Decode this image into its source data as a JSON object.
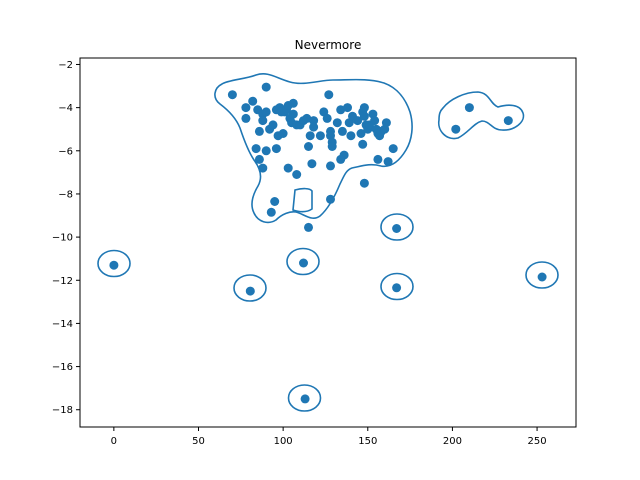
{
  "chart_data": {
    "type": "scatter",
    "title": "Nevermore",
    "xlabel": "",
    "ylabel": "",
    "xlim": [
      -20,
      273
    ],
    "ylim": [
      -18.8,
      -1.7
    ],
    "xticks": [
      0,
      50,
      100,
      150,
      200,
      250
    ],
    "yticks": [
      -18,
      -16,
      -14,
      -12,
      -10,
      -8,
      -6,
      -4,
      -2
    ],
    "xtick_labels": [
      "0",
      "50",
      "100",
      "150",
      "200",
      "250"
    ],
    "ytick_labels": [
      "−18",
      "−16",
      "−14",
      "−12",
      "−10",
      "−8",
      "−6",
      "−4",
      "−2"
    ],
    "grid": false,
    "point_color": "#1f77b4",
    "contour_color": "#1f77b4",
    "points": [
      [
        0,
        -11.3
      ],
      [
        80.6,
        -12.5
      ],
      [
        112,
        -11.2
      ],
      [
        113,
        -17.5
      ],
      [
        167,
        -9.6
      ],
      [
        167,
        -12.35
      ],
      [
        253,
        -11.85
      ],
      [
        202,
        -5.0
      ],
      [
        210,
        -4.0
      ],
      [
        233,
        -4.6
      ],
      [
        70,
        -3.4
      ],
      [
        78,
        -4.0
      ],
      [
        78,
        -4.5
      ],
      [
        82,
        -3.7
      ],
      [
        85,
        -4.1
      ],
      [
        86,
        -5.1
      ],
      [
        88,
        -4.3
      ],
      [
        88,
        -4.6
      ],
      [
        90,
        -3.05
      ],
      [
        90,
        -4.2
      ],
      [
        92,
        -5.0
      ],
      [
        94,
        -4.8
      ],
      [
        96,
        -4.1
      ],
      [
        98,
        -4.0
      ],
      [
        99,
        -4.2
      ],
      [
        101,
        -4.2
      ],
      [
        102,
        -4.1
      ],
      [
        103,
        -3.9
      ],
      [
        104,
        -4.5
      ],
      [
        105,
        -4.7
      ],
      [
        106,
        -4.3
      ],
      [
        106,
        -3.8
      ],
      [
        108,
        -4.8
      ],
      [
        110,
        -4.8
      ],
      [
        112,
        -4.6
      ],
      [
        114,
        -4.5
      ],
      [
        116,
        -5.3
      ],
      [
        118,
        -4.6
      ],
      [
        118,
        -4.9
      ],
      [
        122,
        -5.3
      ],
      [
        124,
        -4.2
      ],
      [
        126,
        -4.5
      ],
      [
        127,
        -3.4
      ],
      [
        128,
        -5.1
      ],
      [
        128,
        -5.3
      ],
      [
        129,
        -5.6
      ],
      [
        129,
        -5.8
      ],
      [
        132,
        -4.7
      ],
      [
        134,
        -4.1
      ],
      [
        135,
        -5.1
      ],
      [
        136,
        -6.2
      ],
      [
        138,
        -4.0
      ],
      [
        139,
        -4.7
      ],
      [
        140,
        -5.3
      ],
      [
        141,
        -4.4
      ],
      [
        144,
        -4.6
      ],
      [
        146,
        -5.2
      ],
      [
        147,
        -4.2
      ],
      [
        148,
        -4.4
      ],
      [
        148,
        -4.0
      ],
      [
        149,
        -4.8
      ],
      [
        150,
        -5.0
      ],
      [
        151,
        -4.8
      ],
      [
        153,
        -4.3
      ],
      [
        154,
        -4.6
      ],
      [
        155,
        -5.0
      ],
      [
        156,
        -5.2
      ],
      [
        157,
        -5.3
      ],
      [
        158,
        -5.1
      ],
      [
        160,
        -5.0
      ],
      [
        161,
        -4.7
      ],
      [
        156,
        -6.4
      ],
      [
        162,
        -6.5
      ],
      [
        165,
        -5.9
      ],
      [
        147,
        -5.7
      ],
      [
        148,
        -7.5
      ],
      [
        96,
        -5.9
      ],
      [
        97,
        -5.3
      ],
      [
        100,
        -5.2
      ],
      [
        103,
        -6.8
      ],
      [
        108,
        -7.1
      ],
      [
        115,
        -5.8
      ],
      [
        117,
        -6.6
      ],
      [
        84,
        -5.9
      ],
      [
        86,
        -6.4
      ],
      [
        88,
        -6.8
      ],
      [
        90,
        -6.0
      ],
      [
        93,
        -8.85
      ],
      [
        95,
        -8.35
      ],
      [
        115,
        -9.55
      ],
      [
        128,
        -6.7
      ],
      [
        128,
        -8.25
      ],
      [
        134,
        -6.4
      ]
    ]
  }
}
